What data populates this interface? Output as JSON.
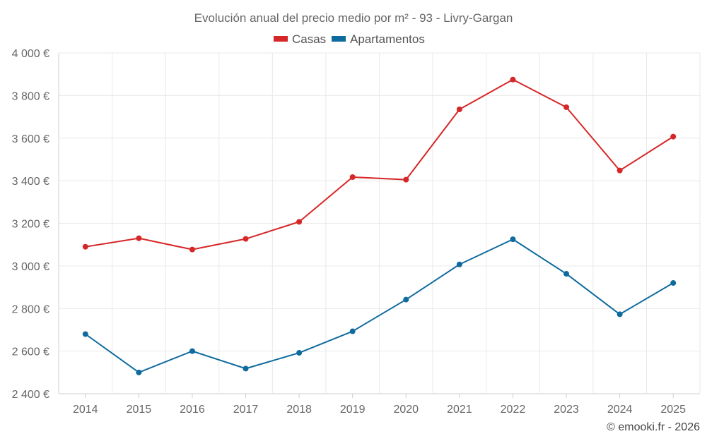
{
  "chart_data": {
    "type": "line",
    "title": "Evolución anual del precio medio por m² - 93 - Livry-Gargan",
    "categories": [
      "2014",
      "2015",
      "2016",
      "2017",
      "2018",
      "2019",
      "2020",
      "2021",
      "2022",
      "2023",
      "2024",
      "2025"
    ],
    "series": [
      {
        "name": "Casas",
        "color": "#d62728",
        "values": [
          3090,
          3130,
          3077,
          3127,
          3207,
          3417,
          3405,
          3735,
          3875,
          3745,
          3448,
          3607
        ]
      },
      {
        "name": "Apartamentos",
        "color": "#0f6b9e",
        "values": [
          2680,
          2500,
          2600,
          2518,
          2592,
          2693,
          2842,
          3007,
          3125,
          2963,
          2773,
          2920
        ]
      }
    ],
    "ylim": [
      2400,
      4000
    ],
    "yticks": [
      2400,
      2600,
      2800,
      3000,
      3200,
      3400,
      3600,
      3800,
      4000
    ],
    "ytick_labels": [
      "2 400 €",
      "2 600 €",
      "2 800 €",
      "3 000 €",
      "3 200 €",
      "3 400 €",
      "3 600 €",
      "3 800 €",
      "4 000 €"
    ],
    "xlabel": "",
    "ylabel": "",
    "legend_position": "top-center",
    "grid": true
  },
  "credit": "© emooki.fr - 2026"
}
